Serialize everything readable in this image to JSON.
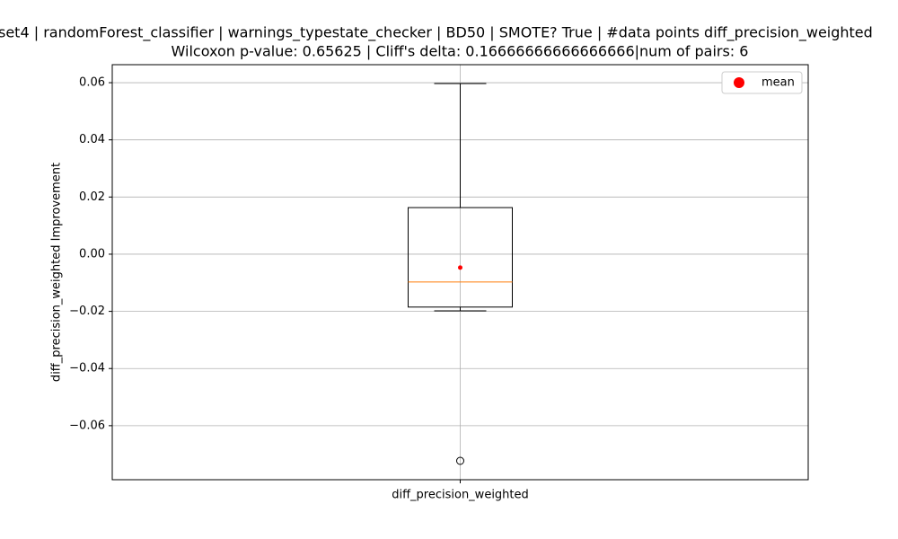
{
  "chart_data": {
    "type": "box",
    "title": "set4 | randomForest_classifier | warnings_typestate_checker | BD50 | SMOTE? True | #data points diff_precision_weighted",
    "subtitle": "Wilcoxon p-value: 0.65625 | Cliff's delta: 0.16666666666666666|num of pairs: 6",
    "y_label": "diff_precision_weighted Improvement",
    "categories": [
      "diff_precision_weighted"
    ],
    "boxes": [
      {
        "whisker_low": -0.0198,
        "q1": -0.0185,
        "median": -0.0097,
        "q3": 0.0163,
        "whisker_high": 0.0597,
        "mean": -0.0047,
        "outliers": [
          -0.0723
        ]
      }
    ],
    "box_color": "#000000",
    "median_color": "#ff7f0e",
    "mean_color": "#ff0000",
    "legend": {
      "label": "mean",
      "position": "upper right"
    },
    "ylim": [
      -0.0789,
      0.0663
    ],
    "yticks": [
      {
        "value": -0.06,
        "label": "−0.06"
      },
      {
        "value": -0.04,
        "label": "−0.04"
      },
      {
        "value": -0.02,
        "label": "−0.02"
      },
      {
        "value": 0,
        "label": "0.00"
      },
      0.02,
      0.04,
      0.06
    ],
    "grid": true
  }
}
